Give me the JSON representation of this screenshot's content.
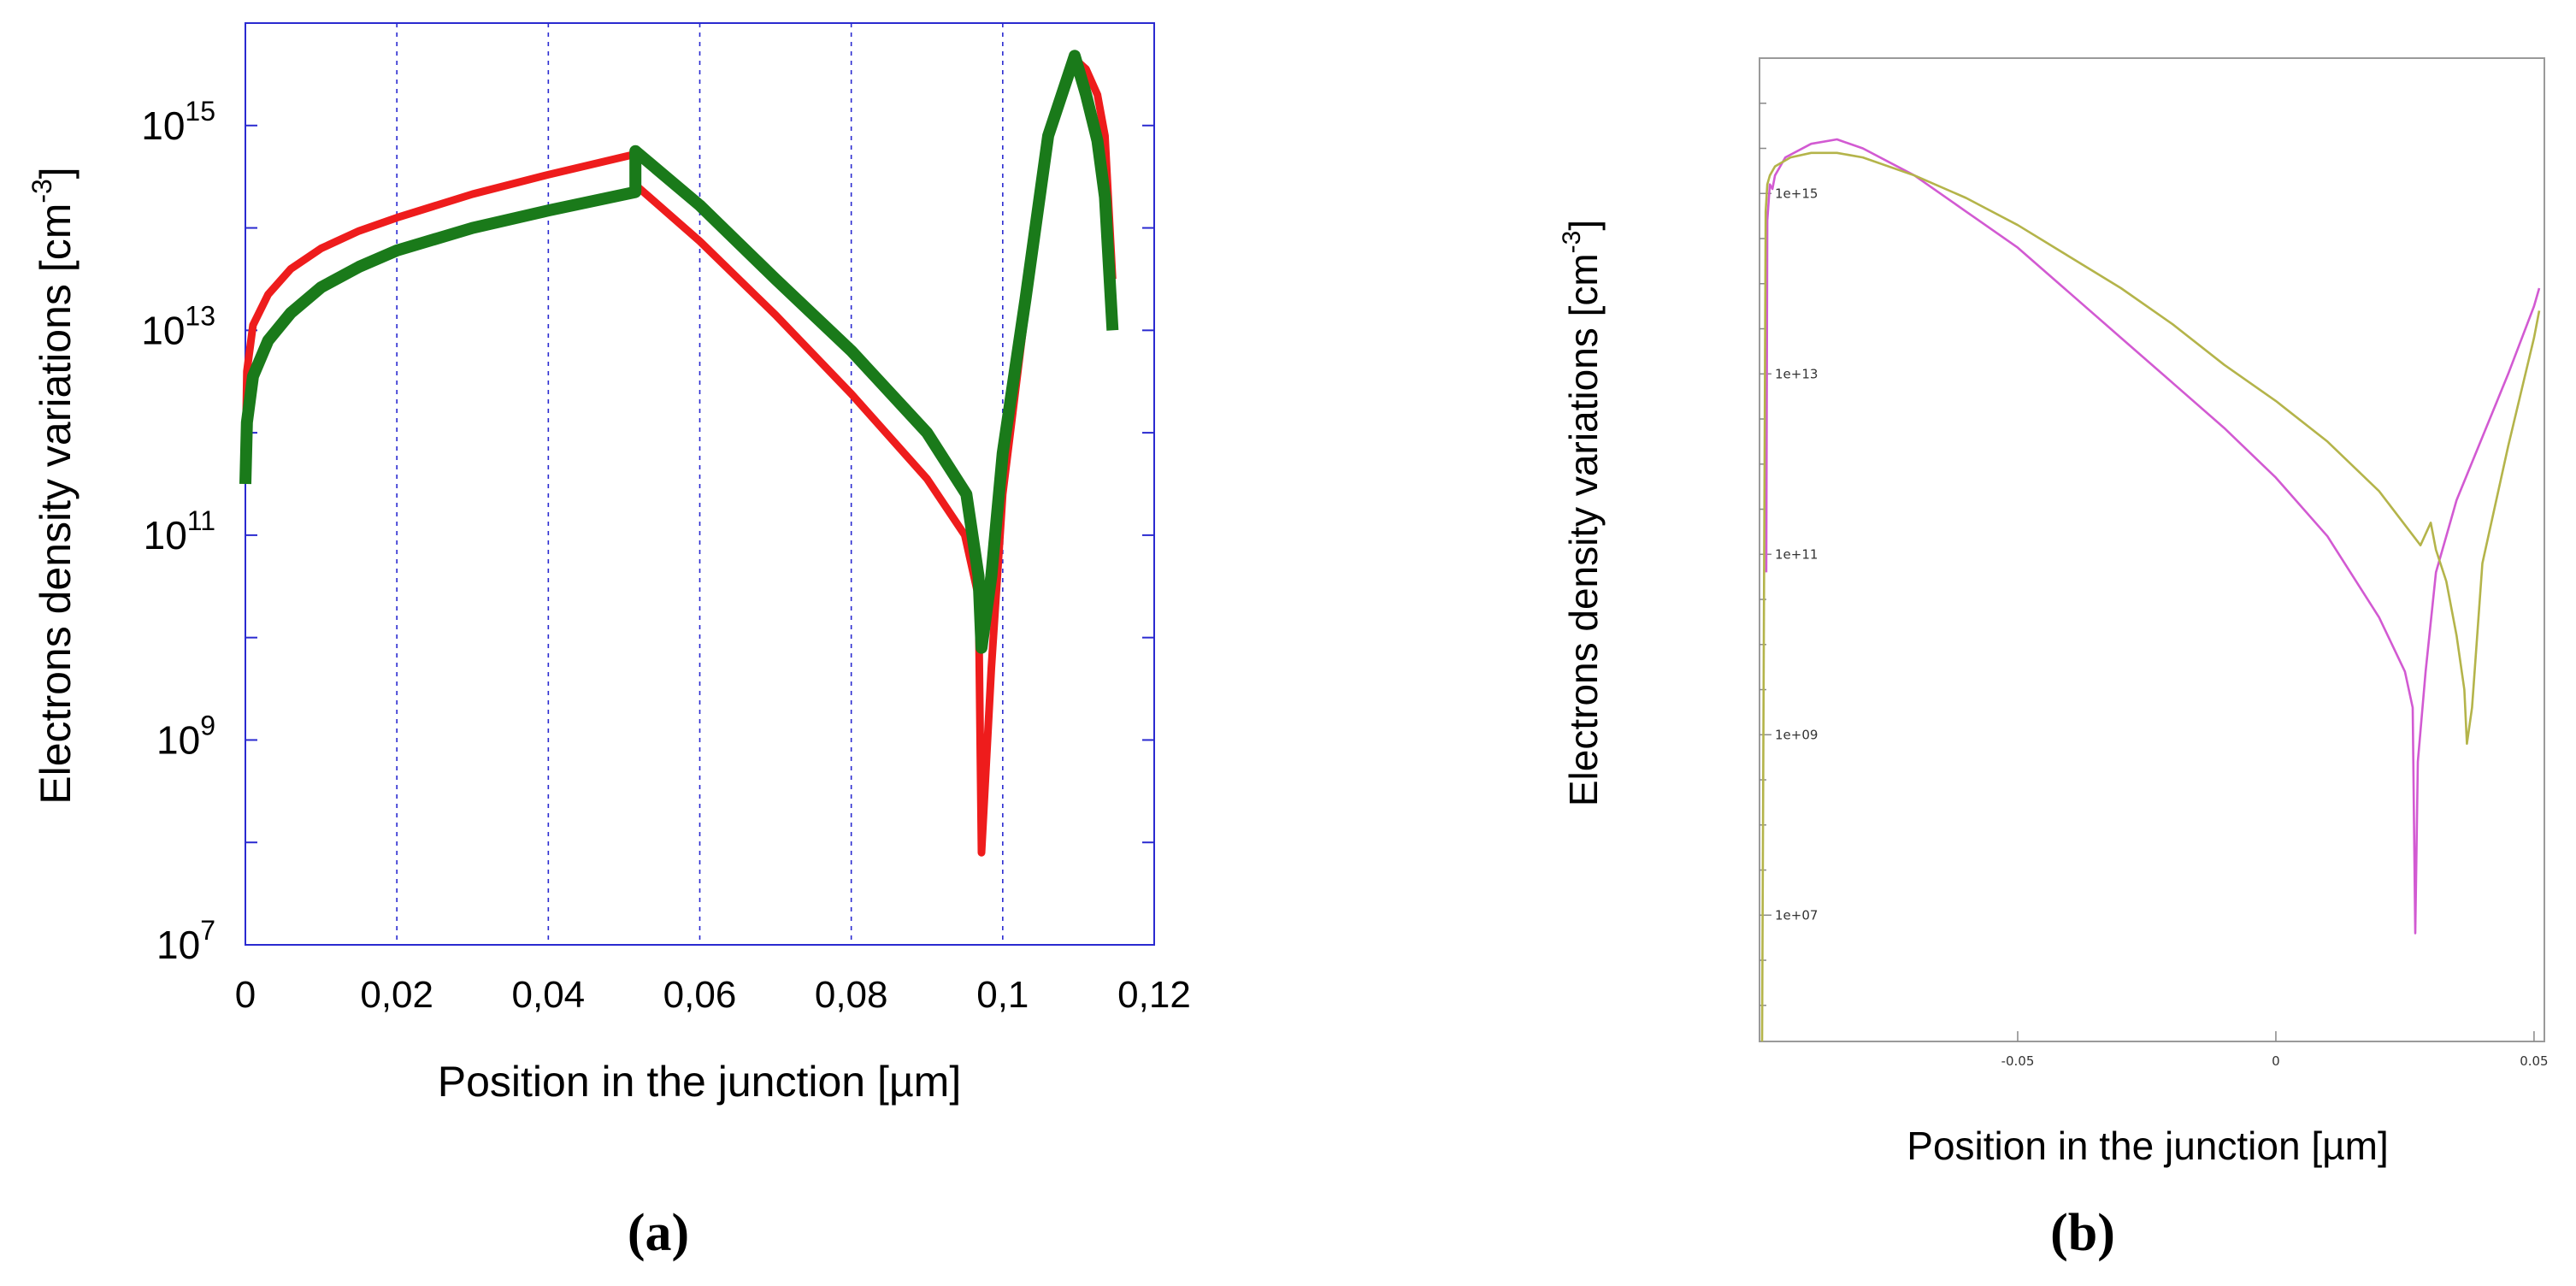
{
  "chart_data": [
    {
      "panel": "a",
      "type": "line",
      "caption": "(a)",
      "xlabel": "Position in the junction [µm]",
      "ylabel": "Electrons density variations [cm",
      "ylabel_sup": "-3",
      "ylabel_end": "]",
      "yscale": "log",
      "xlim": [
        0,
        0.12
      ],
      "ylim_exp": [
        7,
        16
      ],
      "xticks": [
        {
          "v": 0,
          "label": "0"
        },
        {
          "v": 0.02,
          "label": "0,02"
        },
        {
          "v": 0.04,
          "label": "0,04"
        },
        {
          "v": 0.06,
          "label": "0,06"
        },
        {
          "v": 0.08,
          "label": "0,08"
        },
        {
          "v": 0.1,
          "label": "0,1"
        },
        {
          "v": 0.12,
          "label": "0,12"
        }
      ],
      "yticks": [
        {
          "exp": 15,
          "base": "10",
          "sup": "15"
        },
        {
          "exp": 13,
          "base": "10",
          "sup": "13"
        },
        {
          "exp": 11,
          "base": "10",
          "sup": "11"
        },
        {
          "exp": 9,
          "base": "10",
          "sup": "9"
        },
        {
          "exp": 7,
          "base": "10",
          "sup": "7"
        }
      ],
      "grid": "vertical dotted",
      "series": [
        {
          "name": "red curve",
          "color": "#ee1c1c",
          "x": [
            0,
            0.0002,
            0.001,
            0.003,
            0.006,
            0.01,
            0.015,
            0.02,
            0.03,
            0.04,
            0.0515,
            0.0515,
            0.06,
            0.07,
            0.08,
            0.09,
            0.095,
            0.0968,
            0.0972,
            0.0985,
            0.1,
            0.103,
            0.106,
            0.1095,
            0.111,
            0.1125,
            0.1135,
            0.1145
          ],
          "y_exp": [
            11.7,
            12.6,
            13.05,
            13.35,
            13.6,
            13.8,
            13.97,
            14.1,
            14.33,
            14.52,
            14.72,
            14.42,
            13.87,
            13.15,
            12.38,
            11.55,
            11.0,
            10.4,
            7.9,
            9.7,
            11.4,
            13.2,
            14.9,
            15.65,
            15.55,
            15.3,
            14.9,
            13.5
          ]
        },
        {
          "name": "green curve",
          "color": "#1a7a1a",
          "x": [
            0,
            0.0002,
            0.001,
            0.003,
            0.006,
            0.01,
            0.015,
            0.02,
            0.03,
            0.04,
            0.0515,
            0.0515,
            0.06,
            0.07,
            0.08,
            0.09,
            0.0952,
            0.0968,
            0.0972,
            0.0985,
            0.1,
            0.103,
            0.106,
            0.1095,
            0.111,
            0.1125,
            0.1135,
            0.1145
          ],
          "y_exp": [
            11.5,
            12.1,
            12.55,
            12.9,
            13.17,
            13.42,
            13.62,
            13.78,
            14.0,
            14.17,
            14.35,
            14.75,
            14.22,
            13.5,
            12.8,
            12.0,
            11.4,
            10.6,
            9.9,
            10.6,
            11.8,
            13.3,
            14.9,
            15.68,
            15.3,
            14.85,
            14.3,
            13.0
          ]
        }
      ]
    },
    {
      "panel": "b",
      "type": "line",
      "caption": "(b)",
      "xlabel": "Position in the junction [µm]",
      "ylabel": "Electrons density variations [cm",
      "ylabel_sup": "-3",
      "ylabel_end": "]",
      "yscale": "log",
      "xlim": [
        -0.1,
        0.052
      ],
      "ylim_exp": [
        5.6,
        16.5
      ],
      "xticks": [
        {
          "v": -0.05,
          "label": "-0.05"
        },
        {
          "v": 0,
          "label": "0"
        },
        {
          "v": 0.05,
          "label": "0.05"
        }
      ],
      "yticks": [
        {
          "exp": 15,
          "label": "1e+15"
        },
        {
          "exp": 13,
          "label": "1e+13"
        },
        {
          "exp": 11,
          "label": "1e+11"
        },
        {
          "exp": 9,
          "label": "1e+09"
        },
        {
          "exp": 7,
          "label": "1e+07"
        }
      ],
      "series": [
        {
          "name": "magenta curve",
          "color": "#d25ad2",
          "x": [
            -0.0987,
            -0.0985,
            -0.098,
            -0.0975,
            -0.097,
            -0.095,
            -0.09,
            -0.085,
            -0.08,
            -0.07,
            -0.06,
            -0.05,
            -0.04,
            -0.03,
            -0.02,
            -0.01,
            0,
            0.01,
            0.02,
            0.025,
            0.0265,
            0.027,
            0.0275,
            0.029,
            0.031,
            0.035,
            0.04,
            0.045,
            0.05,
            0.051
          ],
          "y_exp": [
            10.8,
            14.7,
            15.1,
            15.05,
            15.2,
            15.4,
            15.55,
            15.6,
            15.5,
            15.2,
            14.8,
            14.4,
            13.9,
            13.4,
            12.9,
            12.4,
            11.85,
            11.2,
            10.3,
            9.7,
            9.3,
            6.8,
            8.7,
            9.7,
            10.8,
            11.6,
            12.3,
            13.0,
            13.75,
            13.95
          ]
        },
        {
          "name": "olive curve",
          "color": "#b4b44a",
          "x": [
            -0.0995,
            -0.0988,
            -0.0985,
            -0.098,
            -0.097,
            -0.094,
            -0.09,
            -0.085,
            -0.08,
            -0.07,
            -0.06,
            -0.05,
            -0.04,
            -0.03,
            -0.02,
            -0.01,
            0,
            0.01,
            0.02,
            0.028,
            0.03,
            0.031,
            0.033,
            0.035,
            0.0365,
            0.037,
            0.038,
            0.04,
            0.045,
            0.05,
            0.051
          ],
          "y_exp": [
            5.6,
            14.8,
            15.1,
            15.2,
            15.3,
            15.4,
            15.45,
            15.45,
            15.4,
            15.2,
            14.95,
            14.65,
            14.3,
            13.95,
            13.55,
            13.1,
            12.7,
            12.25,
            11.7,
            11.1,
            11.35,
            11.05,
            10.7,
            10.1,
            9.5,
            8.9,
            9.3,
            10.9,
            12.2,
            13.4,
            13.7
          ]
        }
      ]
    }
  ]
}
